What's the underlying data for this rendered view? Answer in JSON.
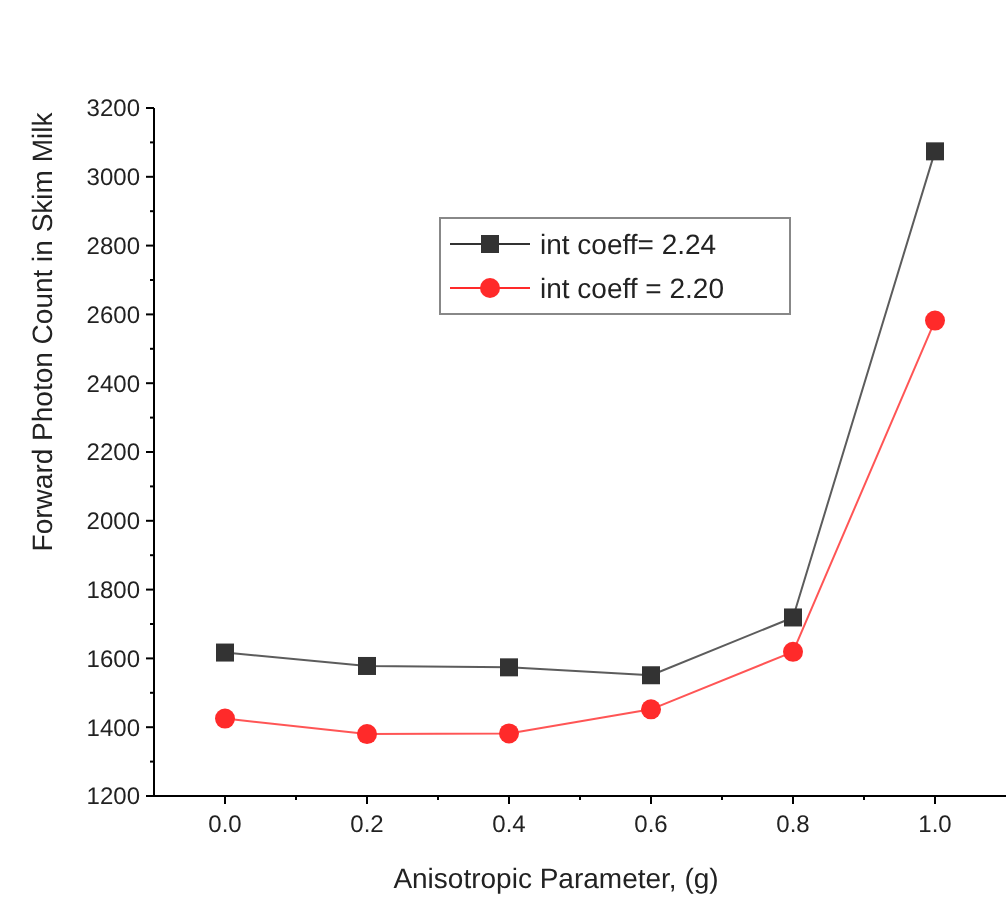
{
  "chart_data": {
    "type": "line",
    "xlabel": "Anisotropic Parameter, (g)",
    "ylabel": "Forward Photon Count in Skim Milk",
    "x": [
      0,
      0.2,
      0.4,
      0.6,
      0.8,
      1.0
    ],
    "series": [
      {
        "name": "int coeff= 2.24",
        "color": "#333333",
        "marker": "square",
        "values": [
          1617,
          1578,
          1574,
          1551,
          1719,
          3074
        ]
      },
      {
        "name": "int coeff = 2.20",
        "color": "#ff2a2a",
        "marker": "circle",
        "values": [
          1425,
          1380,
          1382,
          1452,
          1619,
          2582
        ]
      }
    ],
    "xlim": [
      -0.1,
      1.1
    ],
    "xticks": [
      {
        "value": 0,
        "label": "0.0"
      },
      0.2,
      0.4,
      0.6,
      0.8,
      {
        "value": 1,
        "label": "1.0"
      }
    ],
    "ylim": [
      1200,
      3200
    ],
    "yticks": [
      1200,
      1400,
      1600,
      1800,
      2000,
      2200,
      2400,
      2600,
      2800,
      3000,
      3200
    ],
    "legend": "top right",
    "grid": false
  }
}
